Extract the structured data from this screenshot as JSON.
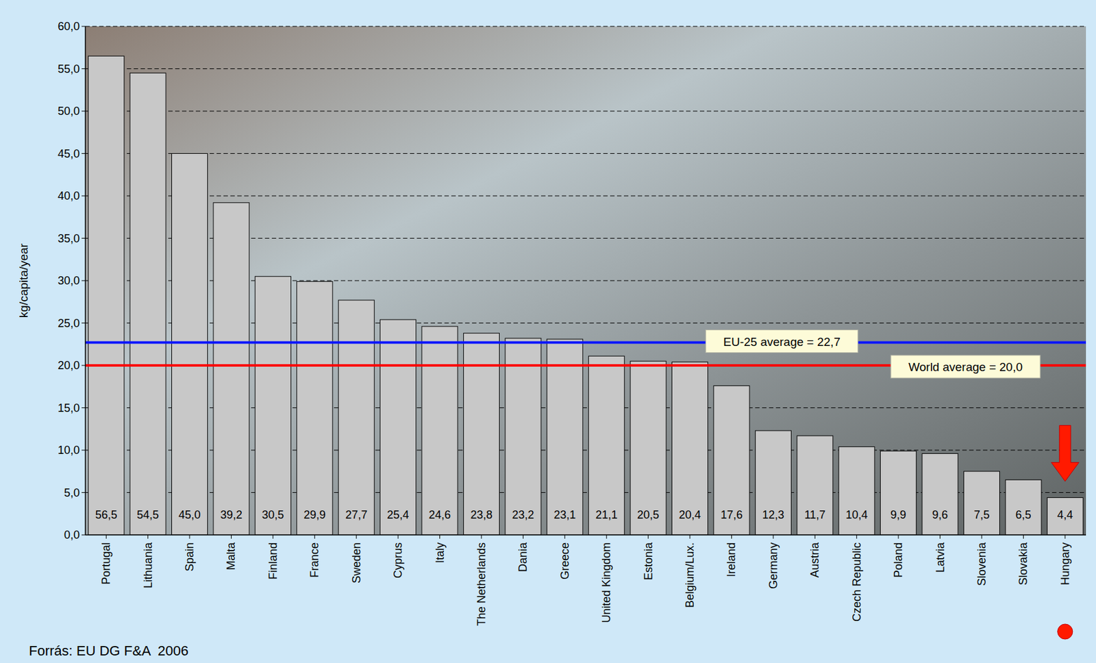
{
  "chart_data": {
    "type": "bar",
    "y_label": "kg/capita/year",
    "source": "Forrás: EU DG F&A  2006",
    "categories": [
      "Portugal",
      "Lithuania",
      "Spain",
      "Malta",
      "Finland",
      "France",
      "Sweden",
      "Cyprus",
      "Italy",
      "The Netherlands",
      "Dania",
      "Greece",
      "United Kingdom",
      "Estonia",
      "Belgium/Lux.",
      "Ireland",
      "Germany",
      "Austria",
      "Czech Republic",
      "Poland",
      "Latvia",
      "Slovenia",
      "Slovakia",
      "Hungary"
    ],
    "values": [
      56.5,
      54.5,
      45.0,
      39.2,
      30.5,
      29.9,
      27.7,
      25.4,
      24.6,
      23.8,
      23.2,
      23.1,
      21.1,
      20.5,
      20.4,
      17.6,
      12.3,
      11.7,
      10.4,
      9.9,
      9.6,
      7.5,
      6.5,
      4.4
    ],
    "value_labels": [
      "56,5",
      "54,5",
      "45,0",
      "39,2",
      "30,5",
      "29,9",
      "27,7",
      "25,4",
      "24,6",
      "23,8",
      "23,2",
      "23,1",
      "21,1",
      "20,5",
      "20,4",
      "17,6",
      "12,3",
      "11,7",
      "10,4",
      "9,9",
      "9,6",
      "7,5",
      "6,5",
      "4,4"
    ],
    "data_labels": true,
    "color": "#c8c8c8",
    "ylim": [
      0,
      60
    ],
    "yticks": [
      {
        "value": 0,
        "label": "0,0"
      },
      {
        "value": 5,
        "label": "5,0"
      },
      {
        "value": 10,
        "label": "10,0"
      },
      {
        "value": 15,
        "label": "15,0"
      },
      {
        "value": 20,
        "label": "20,0"
      },
      {
        "value": 25,
        "label": "25,0"
      },
      {
        "value": 30,
        "label": "30,0"
      },
      {
        "value": 35,
        "label": "35,0"
      },
      {
        "value": 40,
        "label": "40,0"
      },
      {
        "value": 45,
        "label": "45,0"
      },
      {
        "value": 50,
        "label": "50,0"
      },
      {
        "value": 55,
        "label": "55,0"
      },
      {
        "value": 60,
        "label": "60,0"
      }
    ],
    "grid": true,
    "annotations": [
      {
        "value": 22.7,
        "label": "EU-25 average = 22,7",
        "color": "#0a14ff"
      },
      {
        "value": 20.0,
        "label": "World average = 20,0",
        "color": "#ff0000"
      }
    ]
  }
}
